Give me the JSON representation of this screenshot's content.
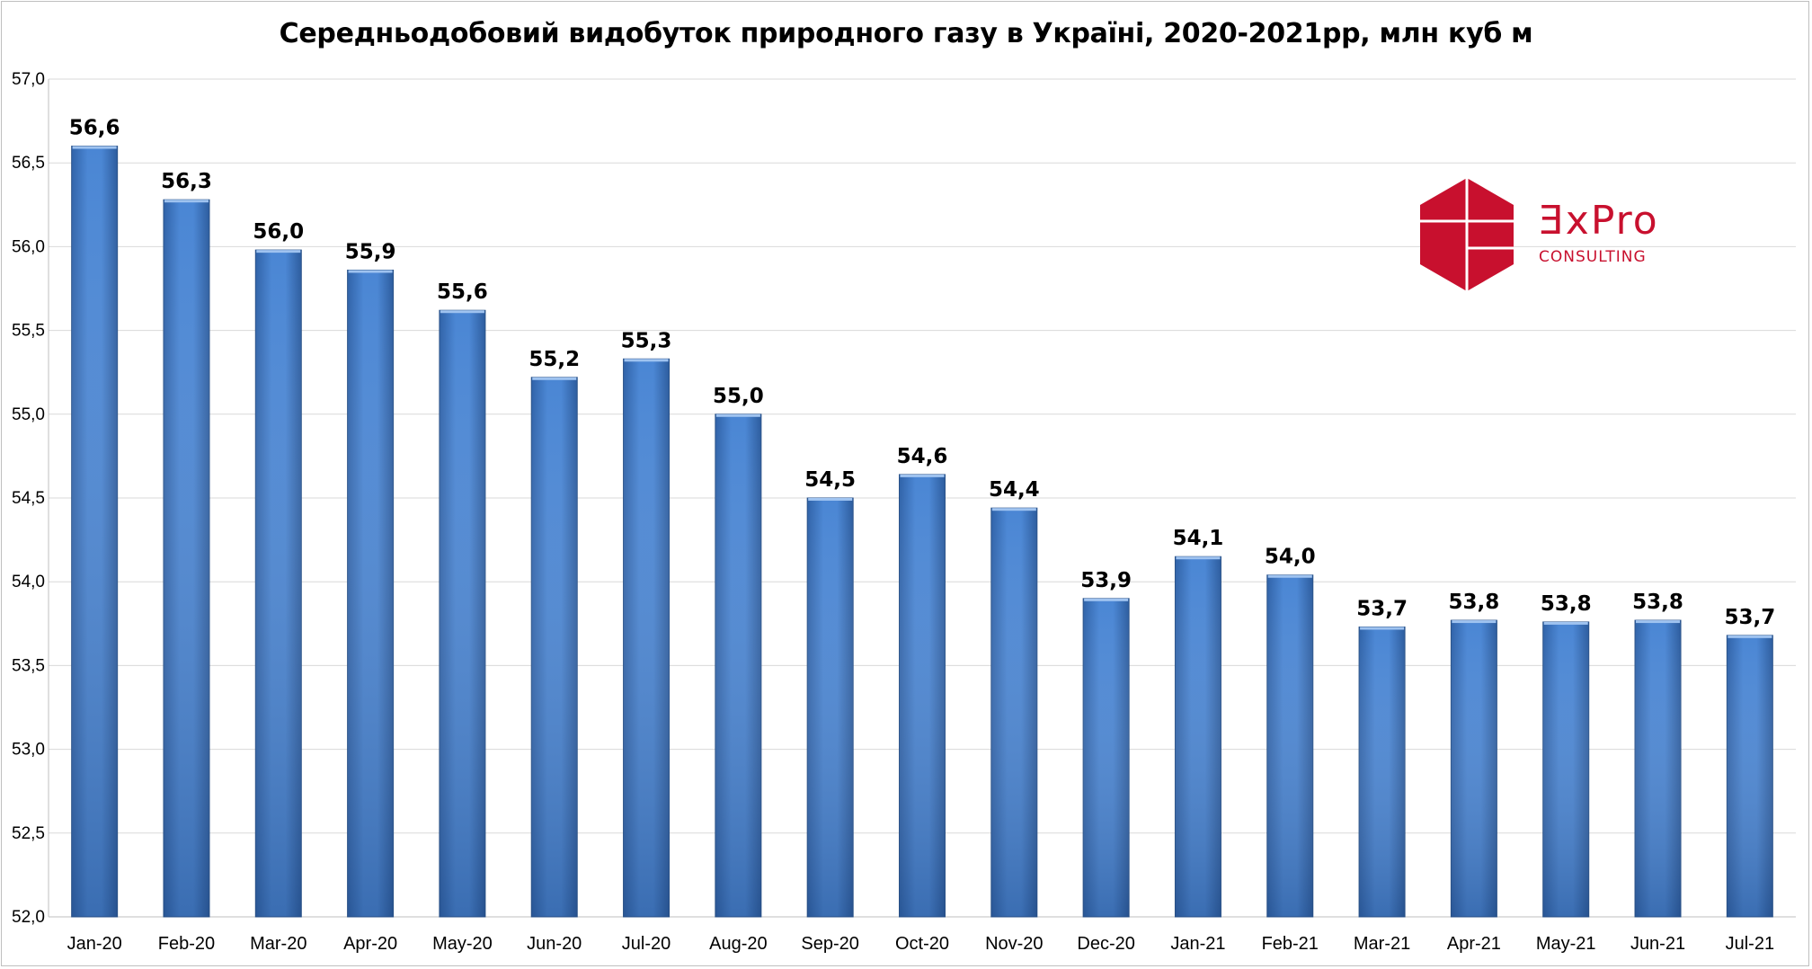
{
  "chart_data": {
    "type": "bar",
    "title": "Середньодобовий видобуток природного газу в Україні, 2020-2021рр, млн куб м",
    "xlabel": "",
    "ylabel": "",
    "ylim": [
      52.0,
      57.0
    ],
    "ytick_step": 0.5,
    "ytick_labels": [
      "52,0",
      "52,5",
      "53,0",
      "53,5",
      "54,0",
      "54,5",
      "55,0",
      "55,5",
      "56,0",
      "56,5",
      "57,0"
    ],
    "grid": true,
    "legend": "none",
    "categories": [
      "Jan-20",
      "Feb-20",
      "Mar-20",
      "Apr-20",
      "May-20",
      "Jun-20",
      "Jul-20",
      "Aug-20",
      "Sep-20",
      "Oct-20",
      "Nov-20",
      "Dec-20",
      "Jan-21",
      "Feb-21",
      "Mar-21",
      "Apr-21",
      "May-21",
      "Jun-21",
      "Jul-21"
    ],
    "values": [
      56.6,
      56.28,
      55.98,
      55.86,
      55.62,
      55.22,
      55.33,
      55.0,
      54.5,
      54.64,
      54.44,
      53.9,
      54.15,
      54.04,
      53.73,
      53.77,
      53.76,
      53.77,
      53.68
    ],
    "data_labels": [
      "56,6",
      "56,3",
      "56,0",
      "55,9",
      "55,6",
      "55,2",
      "55,3",
      "55,0",
      "54,5",
      "54,6",
      "54,4",
      "53,9",
      "54,1",
      "54,0",
      "53,7",
      "53,8",
      "53,8",
      "53,8",
      "53,7"
    ],
    "bar_color": "#4a86d4"
  },
  "logo": {
    "word": "ƎxPro",
    "sub": "CONSULTING",
    "color": "#c8102e"
  }
}
